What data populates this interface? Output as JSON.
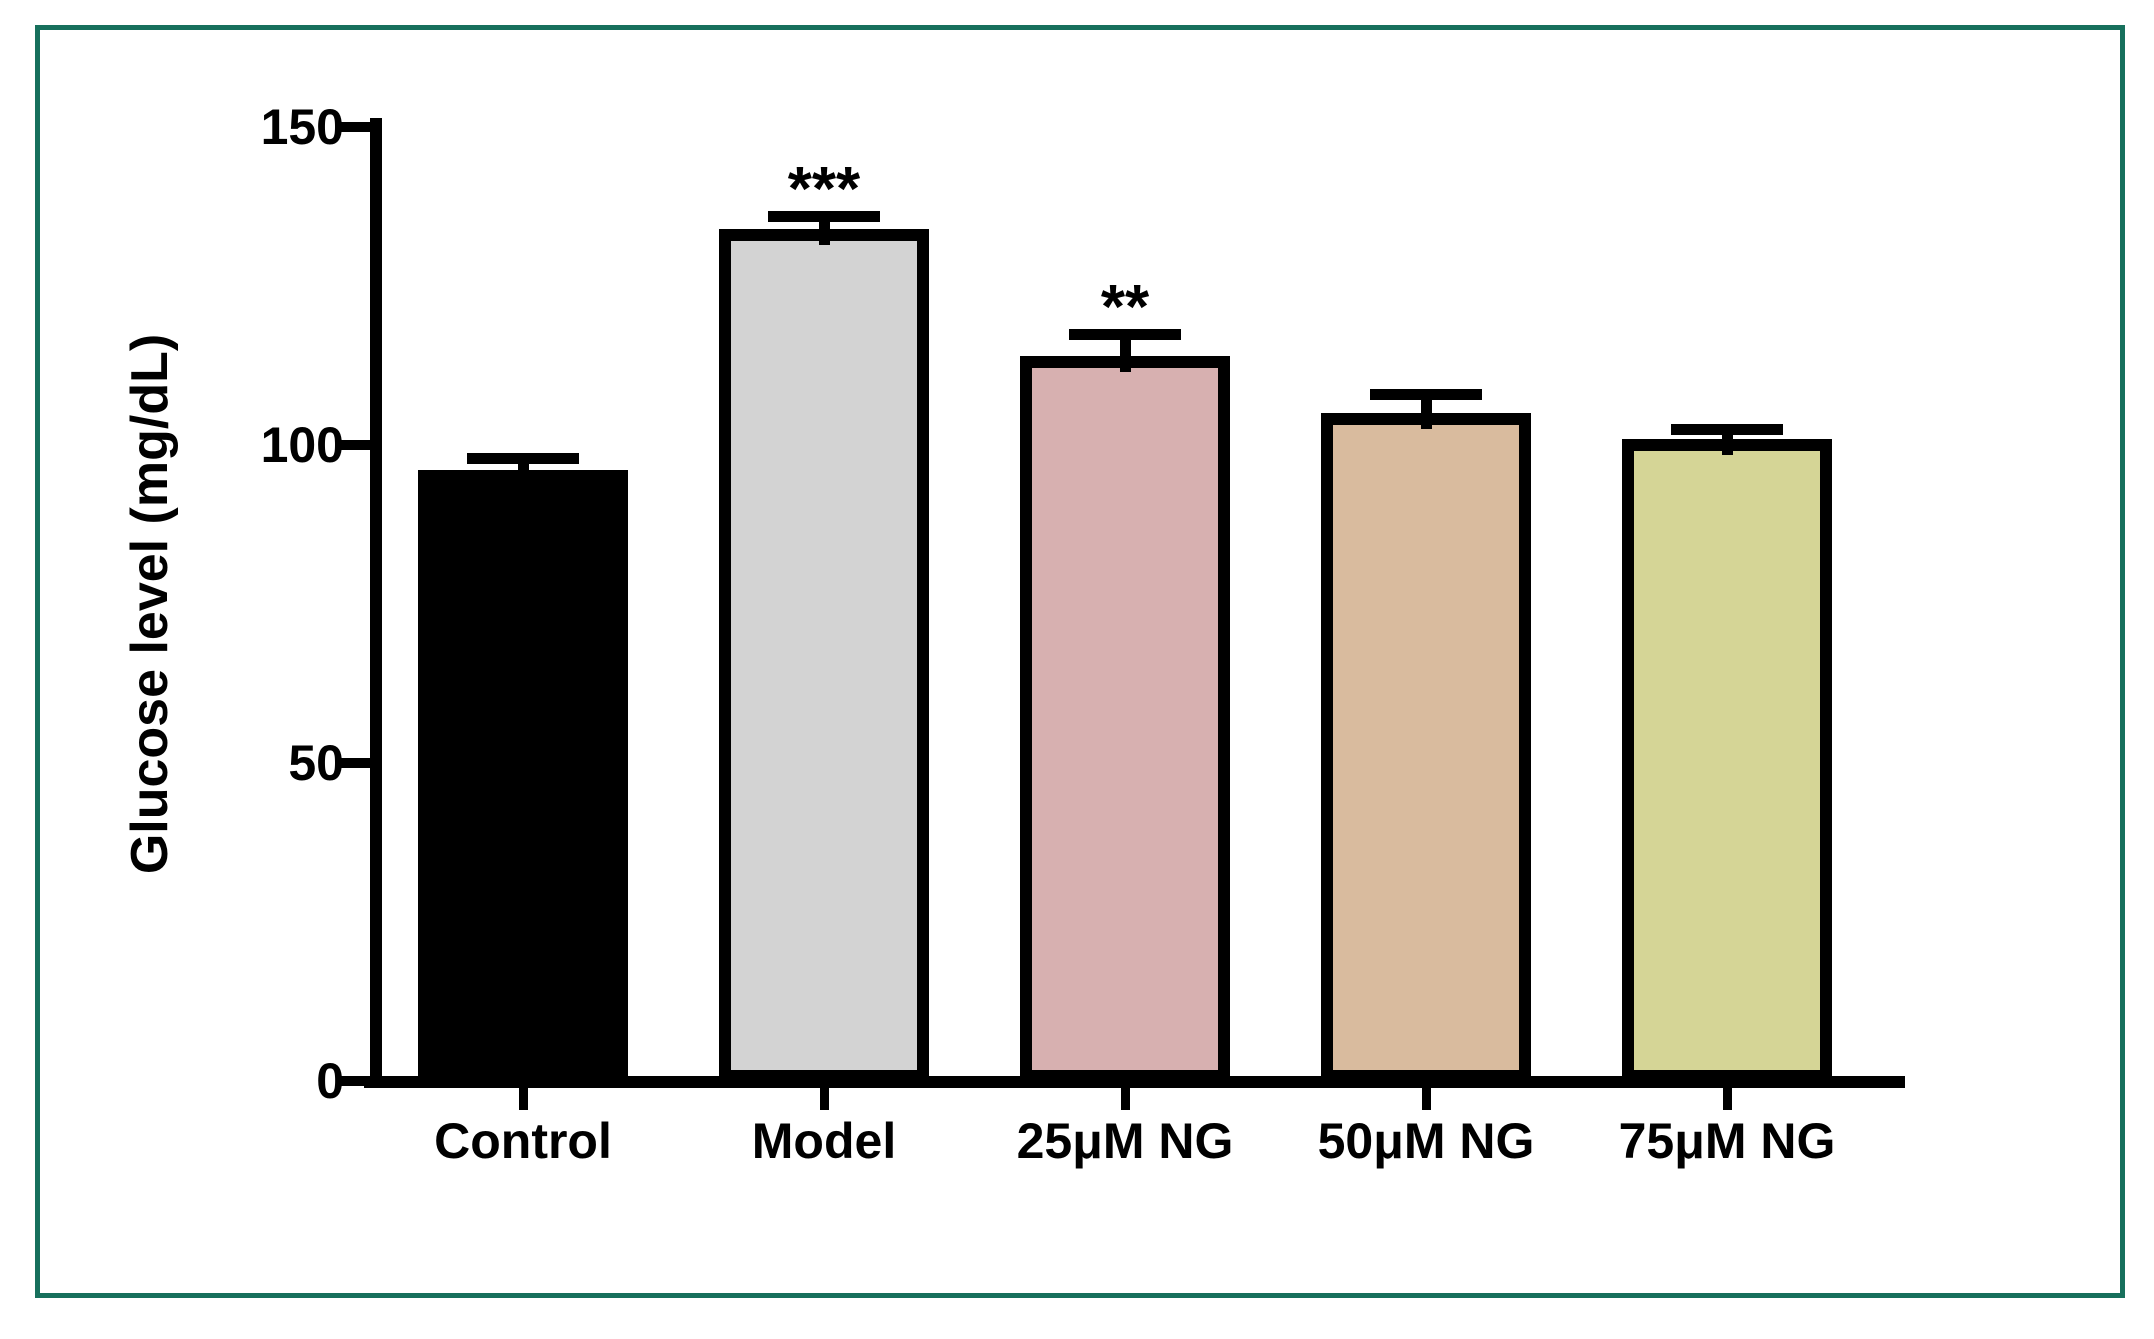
{
  "figure": {
    "background_color": "#ffffff",
    "border_color": "#17705c"
  },
  "chart_data": {
    "type": "bar",
    "title": "",
    "xlabel": "",
    "ylabel": "Glucose level (mg/dL)",
    "ylim": [
      0,
      150
    ],
    "yticks": [
      0,
      50,
      100,
      150
    ],
    "grid": false,
    "legend": "none",
    "categories": [
      "Control",
      "Model",
      "25μM NG",
      "50μM NG",
      "75μM NG"
    ],
    "values": [
      96,
      134,
      114,
      105,
      101
    ],
    "errors_plus": [
      2,
      2,
      3.5,
      3,
      1.5
    ],
    "error_style": "upper caps only",
    "significance": [
      "",
      "***",
      "**",
      "",
      ""
    ],
    "bar_colors": [
      "#000000",
      "#d3d3d3",
      "#d7b0b0",
      "#d9bb9e",
      "#d5d596"
    ],
    "bar_border_color": "#000000"
  }
}
